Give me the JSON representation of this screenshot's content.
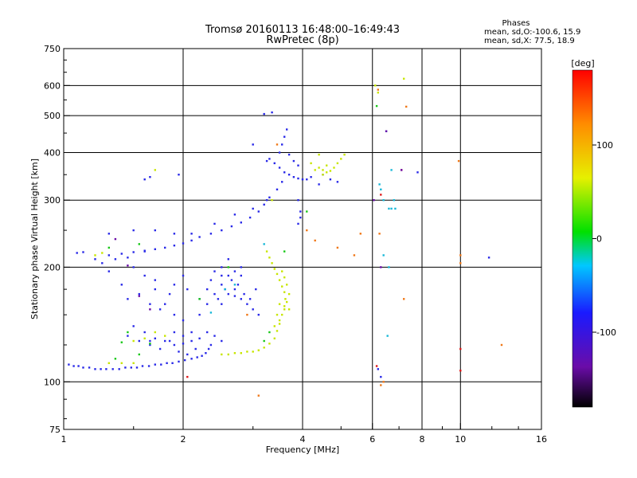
{
  "chart_data": {
    "type": "scatter",
    "title": "Tromsø 20160113 16:48:00–16:49:43",
    "subtitle": "RwPretec (8p)",
    "xlabel": "Frequency [MHz]",
    "ylabel": "Stationary phase Virtual Height [km]",
    "x_scale": "log",
    "y_scale": "log",
    "xlim": [
      1,
      16
    ],
    "ylim": [
      75,
      750
    ],
    "x_ticks": [
      1,
      2,
      4,
      6,
      8,
      10,
      16
    ],
    "x_tick_labels": [
      "1",
      "2",
      "4",
      "6",
      "8",
      "10",
      "16"
    ],
    "y_ticks": [
      75,
      100,
      200,
      300,
      400,
      500,
      600,
      750
    ],
    "y_tick_labels": [
      "75",
      "100",
      "200",
      "300",
      "400",
      "500",
      "600",
      "750"
    ],
    "grid": true,
    "phase_stats": {
      "heading": "Phases",
      "line_o": "mean, sd,O:-100.6, 15.9",
      "line_x": "mean, sd,X:  77.5, 18.9"
    },
    "colorbar": {
      "label": "[deg]",
      "range": [
        -180,
        180
      ],
      "ticks": [
        100,
        0,
        -100
      ],
      "tick_labels": [
        "100",
        "0",
        "-100"
      ]
    },
    "series": [
      {
        "phase": -110,
        "color": "#2a2ae8",
        "points": [
          [
            1.03,
            111
          ],
          [
            1.06,
            110
          ],
          [
            1.09,
            110
          ],
          [
            1.12,
            109
          ],
          [
            1.16,
            109
          ],
          [
            1.2,
            108
          ],
          [
            1.24,
            108
          ],
          [
            1.28,
            108
          ],
          [
            1.33,
            108
          ],
          [
            1.38,
            108
          ],
          [
            1.43,
            109
          ],
          [
            1.48,
            109
          ],
          [
            1.53,
            109
          ],
          [
            1.58,
            110
          ],
          [
            1.64,
            110
          ],
          [
            1.7,
            111
          ],
          [
            1.76,
            111
          ],
          [
            1.82,
            112
          ],
          [
            1.88,
            112
          ],
          [
            1.95,
            113
          ],
          [
            2.02,
            114
          ],
          [
            2.1,
            115
          ],
          [
            2.17,
            116
          ],
          [
            2.23,
            117
          ],
          [
            2.28,
            119
          ],
          [
            2.32,
            122
          ],
          [
            2.35,
            125
          ],
          [
            1.08,
            218
          ],
          [
            1.12,
            219
          ],
          [
            1.3,
            215
          ],
          [
            1.4,
            217
          ],
          [
            1.5,
            219
          ],
          [
            1.6,
            221
          ],
          [
            1.7,
            223
          ],
          [
            1.8,
            225
          ],
          [
            1.9,
            228
          ],
          [
            2.0,
            231
          ],
          [
            2.1,
            235
          ],
          [
            2.2,
            240
          ],
          [
            2.35,
            245
          ],
          [
            2.5,
            250
          ],
          [
            2.65,
            256
          ],
          [
            2.8,
            262
          ],
          [
            2.95,
            270
          ],
          [
            3.1,
            280
          ],
          [
            3.2,
            292
          ],
          [
            3.3,
            305
          ],
          [
            3.45,
            320
          ],
          [
            3.55,
            335
          ],
          [
            1.3,
            245
          ],
          [
            1.5,
            250
          ],
          [
            1.7,
            250
          ],
          [
            1.9,
            245
          ],
          [
            2.1,
            245
          ],
          [
            2.4,
            260
          ],
          [
            2.7,
            275
          ],
          [
            3.0,
            285
          ],
          [
            3.25,
            300
          ],
          [
            1.6,
            340
          ],
          [
            1.65,
            345
          ],
          [
            1.95,
            350
          ],
          [
            3.0,
            420
          ],
          [
            3.2,
            505
          ],
          [
            3.35,
            510
          ],
          [
            3.25,
            380
          ],
          [
            3.3,
            385
          ],
          [
            3.4,
            375
          ],
          [
            3.5,
            365
          ],
          [
            3.6,
            355
          ],
          [
            3.7,
            350
          ],
          [
            3.8,
            345
          ],
          [
            3.9,
            342
          ],
          [
            4.0,
            340
          ],
          [
            4.1,
            340
          ],
          [
            4.2,
            345
          ],
          [
            3.55,
            420
          ],
          [
            3.6,
            440
          ],
          [
            3.65,
            460
          ],
          [
            3.5,
            400
          ],
          [
            3.7,
            395
          ],
          [
            3.8,
            380
          ],
          [
            3.9,
            370
          ],
          [
            3.9,
            300
          ],
          [
            3.95,
            280
          ],
          [
            3.95,
            270
          ],
          [
            3.9,
            260
          ],
          [
            4.5,
            350
          ],
          [
            4.4,
            330
          ],
          [
            4.7,
            340
          ],
          [
            4.9,
            335
          ],
          [
            1.6,
            220
          ],
          [
            1.5,
            200
          ],
          [
            1.3,
            195
          ],
          [
            1.4,
            180
          ],
          [
            1.7,
            175
          ],
          [
            1.8,
            160
          ],
          [
            1.9,
            150
          ],
          [
            2.0,
            145
          ],
          [
            1.6,
            190
          ],
          [
            1.7,
            185
          ],
          [
            1.5,
            140
          ],
          [
            1.6,
            135
          ],
          [
            1.7,
            130
          ],
          [
            1.8,
            128
          ],
          [
            1.9,
            125
          ],
          [
            2.0,
            126
          ],
          [
            2.1,
            128
          ],
          [
            2.2,
            130
          ],
          [
            2.3,
            135
          ],
          [
            2.4,
            132
          ],
          [
            2.5,
            128
          ],
          [
            1.9,
            135
          ],
          [
            2.0,
            132
          ],
          [
            2.1,
            135
          ],
          [
            2.2,
            150
          ],
          [
            2.3,
            160
          ],
          [
            2.4,
            170
          ],
          [
            2.5,
            180
          ],
          [
            2.6,
            190
          ],
          [
            2.7,
            195
          ],
          [
            2.8,
            200
          ],
          [
            2.5,
            160
          ],
          [
            2.6,
            170
          ],
          [
            2.7,
            175
          ],
          [
            2.8,
            165
          ],
          [
            2.9,
            160
          ],
          [
            3.0,
            155
          ],
          [
            3.1,
            150
          ],
          [
            2.4,
            195
          ],
          [
            2.5,
            200
          ],
          [
            2.6,
            210
          ],
          [
            2.8,
            190
          ],
          [
            2.3,
            175
          ],
          [
            2.45,
            165
          ],
          [
            2.55,
            175
          ],
          [
            2.65,
            185
          ],
          [
            2.75,
            180
          ],
          [
            2.85,
            170
          ],
          [
            2.95,
            165
          ],
          [
            3.05,
            175
          ],
          [
            2.2,
            165
          ],
          [
            2.35,
            185
          ],
          [
            2.5,
            190
          ],
          [
            2.7,
            168
          ],
          [
            1.75,
            155
          ],
          [
            1.85,
            170
          ],
          [
            1.9,
            180
          ],
          [
            2.0,
            190
          ],
          [
            2.05,
            175
          ],
          [
            1.65,
            160
          ],
          [
            1.55,
            170
          ],
          [
            1.45,
            165
          ],
          [
            1.45,
            132
          ],
          [
            1.55,
            128
          ],
          [
            1.65,
            125
          ],
          [
            1.75,
            122
          ],
          [
            1.85,
            128
          ],
          [
            1.95,
            120
          ],
          [
            2.05,
            118
          ],
          [
            2.15,
            122
          ],
          [
            1.65,
            128
          ],
          [
            1.25,
            205
          ],
          [
            1.2,
            210
          ],
          [
            1.35,
            210
          ],
          [
            1.45,
            212
          ],
          [
            6.2,
            108
          ],
          [
            6.3,
            103
          ],
          [
            7.8,
            355
          ],
          [
            11.8,
            212
          ]
        ]
      },
      {
        "phase": 90,
        "color": "#c8e600",
        "points": [
          [
            2.5,
            118
          ],
          [
            2.6,
            118
          ],
          [
            2.7,
            119
          ],
          [
            2.8,
            119
          ],
          [
            2.9,
            120
          ],
          [
            3.0,
            120
          ],
          [
            3.1,
            121
          ],
          [
            3.2,
            123
          ],
          [
            3.3,
            126
          ],
          [
            3.4,
            130
          ],
          [
            3.45,
            136
          ],
          [
            3.5,
            142
          ],
          [
            3.55,
            150
          ],
          [
            3.6,
            158
          ],
          [
            3.62,
            165
          ],
          [
            3.6,
            172
          ],
          [
            3.55,
            178
          ],
          [
            3.5,
            185
          ],
          [
            3.45,
            192
          ],
          [
            3.4,
            198
          ],
          [
            3.35,
            205
          ],
          [
            3.3,
            212
          ],
          [
            3.25,
            220
          ],
          [
            3.4,
            140
          ],
          [
            3.5,
            145
          ],
          [
            3.6,
            155
          ],
          [
            3.65,
            162
          ],
          [
            3.7,
            170
          ],
          [
            3.65,
            180
          ],
          [
            3.6,
            188
          ],
          [
            3.55,
            195
          ],
          [
            3.5,
            160
          ],
          [
            3.45,
            150
          ],
          [
            3.7,
            155
          ],
          [
            4.3,
            360
          ],
          [
            4.4,
            365
          ],
          [
            4.5,
            360
          ],
          [
            4.6,
            355
          ],
          [
            4.7,
            358
          ],
          [
            4.8,
            365
          ],
          [
            4.9,
            375
          ],
          [
            5.0,
            385
          ],
          [
            5.1,
            395
          ],
          [
            4.2,
            375
          ],
          [
            4.5,
            350
          ],
          [
            4.6,
            370
          ],
          [
            1.3,
            112
          ],
          [
            1.4,
            112
          ],
          [
            1.5,
            112
          ],
          [
            1.8,
            132
          ],
          [
            1.7,
            135
          ],
          [
            1.6,
            130
          ],
          [
            1.5,
            128
          ],
          [
            1.2,
            215
          ],
          [
            1.25,
            218
          ],
          [
            1.7,
            360
          ],
          [
            6.1,
            600
          ],
          [
            6.2,
            575
          ],
          [
            7.2,
            625
          ],
          [
            4.4,
            395
          ],
          [
            3.35,
            300
          ]
        ]
      },
      {
        "phase": 20,
        "color": "#18c818",
        "points": [
          [
            1.35,
            115
          ],
          [
            1.55,
            118
          ],
          [
            1.65,
            126
          ],
          [
            1.45,
            135
          ],
          [
            3.3,
            135
          ],
          [
            3.2,
            128
          ],
          [
            1.55,
            230
          ],
          [
            1.3,
            225
          ],
          [
            2.2,
            165
          ],
          [
            6.15,
            530
          ],
          [
            3.6,
            220
          ],
          [
            4.1,
            280
          ],
          [
            2.6,
            200
          ],
          [
            1.4,
            127
          ]
        ]
      },
      {
        "phase": 150,
        "color": "#f07818",
        "points": [
          [
            3.1,
            92
          ],
          [
            7.3,
            528
          ],
          [
            3.45,
            420
          ],
          [
            9.9,
            380
          ],
          [
            12.7,
            125
          ],
          [
            10.0,
            215
          ],
          [
            10.0,
            205
          ],
          [
            5.6,
            245
          ],
          [
            4.1,
            250
          ],
          [
            4.3,
            235
          ],
          [
            6.25,
            245
          ],
          [
            7.2,
            165
          ],
          [
            6.3,
            98
          ],
          [
            6.4,
            100
          ],
          [
            2.9,
            150
          ],
          [
            6.2,
            585
          ],
          [
            5.4,
            215
          ],
          [
            4.9,
            225
          ]
        ]
      },
      {
        "phase": -40,
        "color": "#18b8d8",
        "points": [
          [
            6.4,
            300
          ],
          [
            6.6,
            285
          ],
          [
            6.7,
            285
          ],
          [
            6.8,
            300
          ],
          [
            6.85,
            285
          ],
          [
            6.25,
            330
          ],
          [
            6.3,
            320
          ],
          [
            6.55,
            132
          ],
          [
            6.6,
            200
          ],
          [
            6.4,
            215
          ],
          [
            6.5,
            455
          ],
          [
            6.7,
            360
          ],
          [
            2.55,
            175
          ],
          [
            2.7,
            180
          ],
          [
            3.2,
            230
          ],
          [
            2.35,
            152
          ]
        ]
      },
      {
        "phase": 170,
        "color": "#e01818",
        "points": [
          [
            6.3,
            310
          ],
          [
            10.0,
            122
          ],
          [
            10.0,
            107
          ],
          [
            6.15,
            110
          ],
          [
            2.05,
            103
          ],
          [
            7.1,
            360
          ]
        ]
      },
      {
        "phase": -150,
        "color": "#6a0ca8",
        "points": [
          [
            6.5,
            455
          ],
          [
            7.1,
            360
          ],
          [
            6.3,
            200
          ],
          [
            6.05,
            300
          ],
          [
            1.35,
            237
          ],
          [
            1.45,
            202
          ],
          [
            1.55,
            168
          ],
          [
            1.65,
            155
          ]
        ]
      }
    ]
  }
}
